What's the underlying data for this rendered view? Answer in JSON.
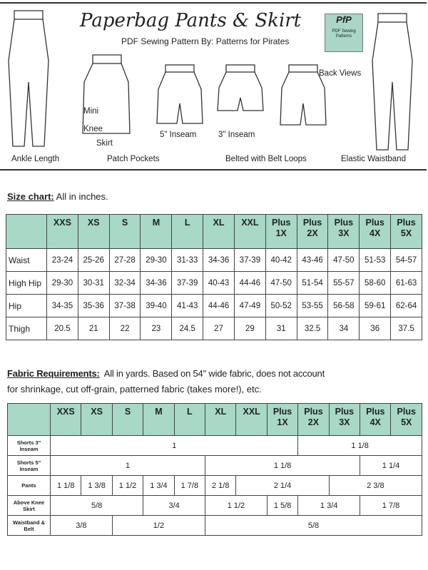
{
  "header": {
    "title": "Paperbag Pants & Skirt",
    "subtitle": "PDF Sewing Pattern By: Patterns for Pirates",
    "logo_text": "PfP",
    "logo_sub": "PDF Sewing Patterns",
    "labels": {
      "ankle": "Ankle Length",
      "mini": "Mini",
      "knee": "Knee",
      "skirt": "Skirt",
      "patch": "Patch Pockets",
      "inseam5": "5\" Inseam",
      "inseam3": "3\" Inseam",
      "belted": "Belted with Belt Loops",
      "back": "Back Views",
      "elastic": "Elastic Waistband"
    }
  },
  "size_chart": {
    "title": "Size chart:",
    "note": "All in inches.",
    "sizes": [
      [
        "XXS"
      ],
      [
        "XS"
      ],
      [
        "S"
      ],
      [
        "M"
      ],
      [
        "L"
      ],
      [
        "XL"
      ],
      [
        "XXL"
      ],
      [
        "Plus",
        "1X"
      ],
      [
        "Plus",
        "2X"
      ],
      [
        "Plus",
        "3X"
      ],
      [
        "Plus",
        "4X"
      ],
      [
        "Plus",
        "5X"
      ]
    ],
    "rows": [
      {
        "label": "Waist",
        "values": [
          "23-24",
          "25-26",
          "27-28",
          "29-30",
          "31-33",
          "34-36",
          "37-39",
          "40-42",
          "43-46",
          "47-50",
          "51-53",
          "54-57"
        ]
      },
      {
        "label": "High Hip",
        "values": [
          "29-30",
          "30-31",
          "32-34",
          "34-36",
          "37-39",
          "40-43",
          "44-46",
          "47-50",
          "51-54",
          "55-57",
          "58-60",
          "61-63"
        ]
      },
      {
        "label": "Hip",
        "values": [
          "34-35",
          "35-36",
          "37-38",
          "39-40",
          "41-43",
          "44-46",
          "47-49",
          "50-52",
          "53-55",
          "56-58",
          "59-61",
          "62-64"
        ]
      },
      {
        "label": "Thigh",
        "values": [
          "20.5",
          "21",
          "22",
          "23",
          "24.5",
          "27",
          "29",
          "31",
          "32.5",
          "34",
          "36",
          "37.5"
        ]
      }
    ]
  },
  "fabric": {
    "title": "Fabric Requirements:",
    "note1": "All in yards. Based on 54\" wide fabric, does not account",
    "note2": "for shrinkage, cut off-grain, patterned fabric (takes more!), etc.",
    "rows": [
      {
        "label": "Shorts 3\" Inseam",
        "cells": [
          {
            "v": "1",
            "span": 8
          },
          {
            "v": "1 1/8",
            "span": 4
          }
        ]
      },
      {
        "label": "Shorts 5\" Inseam",
        "cells": [
          {
            "v": "1",
            "span": 5
          },
          {
            "v": "1 1/8",
            "span": 5
          },
          {
            "v": "1 1/4",
            "span": 2
          }
        ]
      },
      {
        "label": "Pants",
        "cells": [
          {
            "v": "1 1/8",
            "span": 1
          },
          {
            "v": "1 3/8",
            "span": 1
          },
          {
            "v": "1 1/2",
            "span": 1
          },
          {
            "v": "1 3/4",
            "span": 1
          },
          {
            "v": "1 7/8",
            "span": 1
          },
          {
            "v": "2 1/8",
            "span": 1
          },
          {
            "v": "2 1/4",
            "span": 3
          },
          {
            "v": "2 3/8",
            "span": 3
          }
        ]
      },
      {
        "label": "Above Knee Skirt",
        "cells": [
          {
            "v": "5/8",
            "span": 3
          },
          {
            "v": "3/4",
            "span": 2
          },
          {
            "v": "1 1/2",
            "span": 2
          },
          {
            "v": "1 5/8",
            "span": 1
          },
          {
            "v": "1 3/4",
            "span": 2
          },
          {
            "v": "1 7/8",
            "span": 2
          }
        ]
      },
      {
        "label": "Waistband & Belt",
        "cells": [
          {
            "v": "3/8",
            "span": 2
          },
          {
            "v": "1/2",
            "span": 3
          },
          {
            "v": "5/8",
            "span": 7
          }
        ]
      }
    ]
  },
  "colors": {
    "header_fill": "#a8d8c6",
    "border": "#444444"
  }
}
